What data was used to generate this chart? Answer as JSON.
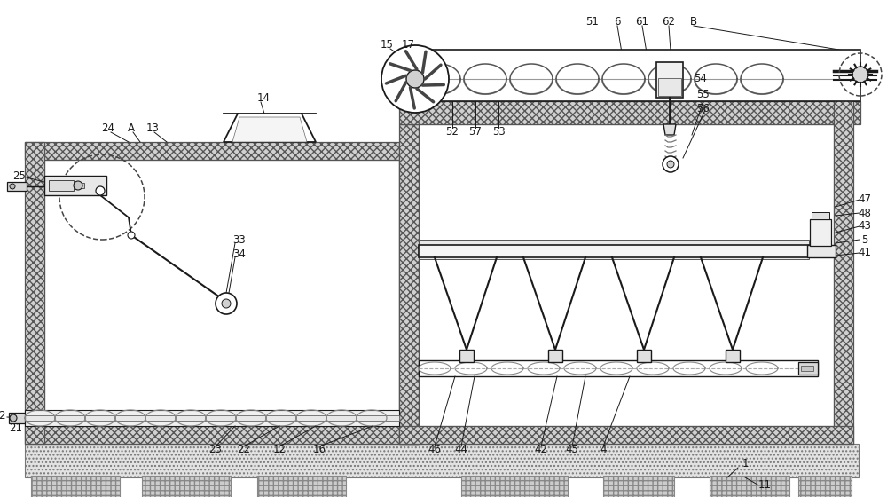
{
  "bg_color": "#ffffff",
  "line_color": "#1a1a1a",
  "fig_width": 10.0,
  "fig_height": 5.6,
  "lw_main": 1.3,
  "lw_thin": 0.8,
  "hatch_wall": "xxxx",
  "hatch_base": "....",
  "wall_fc": "#d8d8d8",
  "base_fc": "#e0e0e0"
}
